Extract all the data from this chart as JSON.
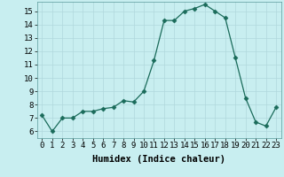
{
  "x": [
    0,
    1,
    2,
    3,
    4,
    5,
    6,
    7,
    8,
    9,
    10,
    11,
    12,
    13,
    14,
    15,
    16,
    17,
    18,
    19,
    20,
    21,
    22,
    23
  ],
  "y": [
    7.2,
    6.0,
    7.0,
    7.0,
    7.5,
    7.5,
    7.7,
    7.8,
    8.3,
    8.2,
    9.0,
    11.3,
    14.3,
    14.3,
    15.0,
    15.2,
    15.5,
    15.0,
    14.5,
    11.5,
    8.5,
    6.7,
    6.4,
    7.8
  ],
  "xlabel": "Humidex (Indice chaleur)",
  "ylim": [
    5.5,
    15.7
  ],
  "xlim": [
    -0.5,
    23.5
  ],
  "yticks": [
    6,
    7,
    8,
    9,
    10,
    11,
    12,
    13,
    14,
    15
  ],
  "xticks": [
    0,
    1,
    2,
    3,
    4,
    5,
    6,
    7,
    8,
    9,
    10,
    11,
    12,
    13,
    14,
    15,
    16,
    17,
    18,
    19,
    20,
    21,
    22,
    23
  ],
  "line_color": "#1a6b5a",
  "marker": "D",
  "marker_size": 2.5,
  "bg_color": "#c8eef0",
  "grid_color": "#b0d8dc",
  "tick_fontsize": 6.5,
  "xlabel_fontsize": 7.5
}
